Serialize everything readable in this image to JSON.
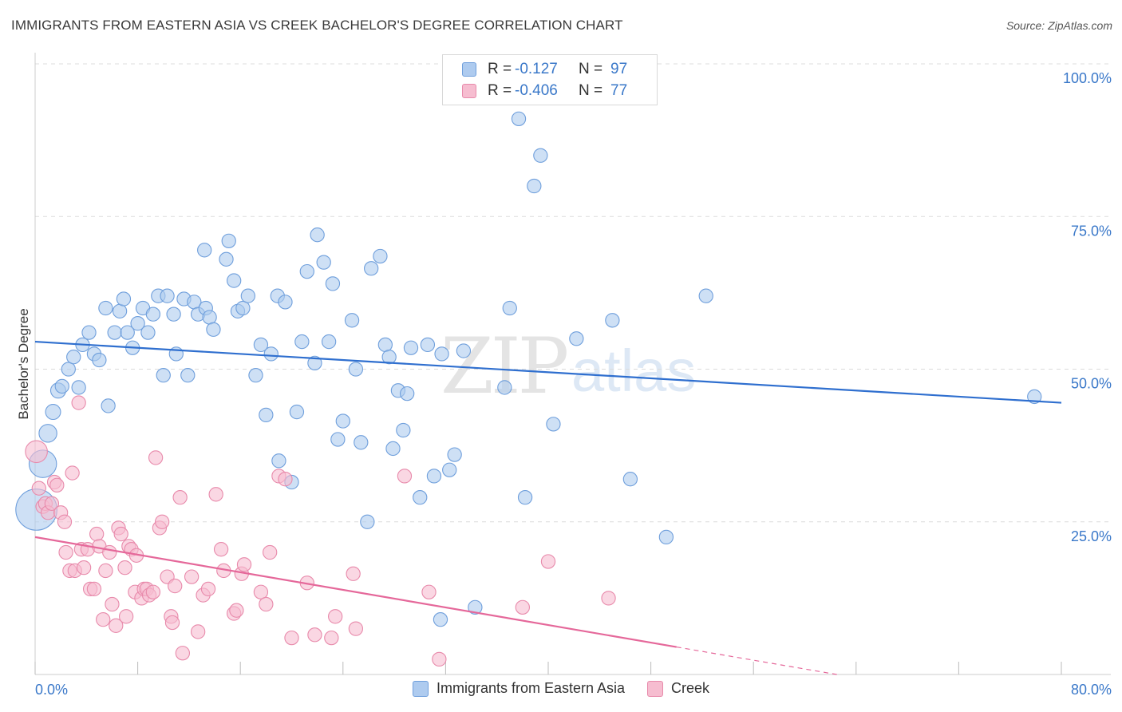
{
  "title": "IMMIGRANTS FROM EASTERN ASIA VS CREEK BACHELOR'S DEGREE CORRELATION CHART",
  "source": "Source: ZipAtlas.com",
  "watermark": {
    "zip": "ZIP",
    "atlas": "atlas"
  },
  "legend": {
    "r_label": "R =",
    "n_label": "N =",
    "rows": [
      {
        "r": "-0.127",
        "n": "97"
      },
      {
        "r": "-0.406",
        "n": "77"
      }
    ]
  },
  "colors": {
    "blue_fill": "#aecbef",
    "blue_stroke": "#6f9fdc",
    "blue_line": "#2f6fcf",
    "pink_fill": "#f6bdd0",
    "pink_stroke": "#e88aab",
    "pink_line": "#e5689a",
    "tick_label": "#3a78c9",
    "grid": "#dcdcdc"
  },
  "chart_data": {
    "type": "scatter",
    "xlabel": "",
    "ylabel": "Bachelor's Degree",
    "x_tick_labels": [
      "0.0%",
      "80.0%"
    ],
    "y_tick_labels": [
      "100.0%",
      "75.0%",
      "50.0%",
      "25.0%"
    ],
    "xlim": [
      0,
      80
    ],
    "ylim": [
      0,
      100
    ],
    "y_ticks": [
      100,
      75,
      50,
      25
    ],
    "grid": "horizontal dashed",
    "series": [
      {
        "name": "Immigrants from Eastern Asia",
        "color": "#aecbef",
        "trend": {
          "x0": 0,
          "y0": 54.5,
          "x1": 80,
          "y1": 44.5
        },
        "points": [
          [
            0.1,
            27.0,
            3
          ],
          [
            0.6,
            34.5,
            2
          ],
          [
            1.0,
            39.5,
            1.3
          ],
          [
            1.4,
            43.0,
            1.1
          ],
          [
            1.8,
            46.5,
            1.1
          ],
          [
            2.1,
            47.2,
            1
          ],
          [
            2.6,
            50.0,
            1
          ],
          [
            3.0,
            52.0,
            1
          ],
          [
            3.4,
            47.0,
            1
          ],
          [
            3.7,
            54.0,
            1
          ],
          [
            4.2,
            56.0,
            1
          ],
          [
            4.6,
            52.5,
            1
          ],
          [
            5.0,
            51.5,
            1
          ],
          [
            5.5,
            60.0,
            1
          ],
          [
            5.7,
            44.0,
            1
          ],
          [
            6.2,
            56.0,
            1
          ],
          [
            6.6,
            59.5,
            1
          ],
          [
            6.9,
            61.5,
            1
          ],
          [
            7.2,
            56.0,
            1
          ],
          [
            7.6,
            53.5,
            1
          ],
          [
            8.0,
            57.5,
            1
          ],
          [
            8.4,
            60.0,
            1
          ],
          [
            8.8,
            56.0,
            1
          ],
          [
            9.2,
            59.0,
            1
          ],
          [
            9.6,
            62.0,
            1
          ],
          [
            10.0,
            49.0,
            1
          ],
          [
            10.3,
            62.0,
            1
          ],
          [
            10.8,
            59.0,
            1
          ],
          [
            11.0,
            52.5,
            1
          ],
          [
            11.6,
            61.5,
            1
          ],
          [
            11.9,
            49.0,
            1
          ],
          [
            12.4,
            61.0,
            1
          ],
          [
            12.7,
            59.0,
            1
          ],
          [
            13.3,
            60.0,
            1
          ],
          [
            13.6,
            58.5,
            1
          ],
          [
            13.9,
            56.5,
            1
          ],
          [
            13.2,
            69.5,
            1
          ],
          [
            14.9,
            68.0,
            1
          ],
          [
            15.1,
            71.0,
            1
          ],
          [
            15.5,
            64.5,
            1
          ],
          [
            15.8,
            59.5,
            1
          ],
          [
            16.2,
            60.0,
            1
          ],
          [
            16.6,
            62.0,
            1
          ],
          [
            17.2,
            49.0,
            1
          ],
          [
            17.6,
            54.0,
            1
          ],
          [
            18.0,
            42.5,
            1
          ],
          [
            18.4,
            52.5,
            1
          ],
          [
            18.9,
            62.0,
            1
          ],
          [
            19.0,
            35.0,
            1
          ],
          [
            19.5,
            61.0,
            1
          ],
          [
            20.0,
            31.5,
            1
          ],
          [
            20.4,
            43.0,
            1
          ],
          [
            20.8,
            54.5,
            1
          ],
          [
            21.2,
            66.0,
            1
          ],
          [
            21.8,
            51.0,
            1
          ],
          [
            22.0,
            72.0,
            1
          ],
          [
            22.5,
            67.5,
            1
          ],
          [
            22.9,
            54.5,
            1
          ],
          [
            23.2,
            64.0,
            1
          ],
          [
            23.6,
            38.5,
            1
          ],
          [
            24.0,
            41.5,
            1
          ],
          [
            24.7,
            58.0,
            1
          ],
          [
            25.0,
            50.0,
            1
          ],
          [
            25.4,
            38.0,
            1
          ],
          [
            25.9,
            25.0,
            1
          ],
          [
            26.2,
            66.5,
            1
          ],
          [
            26.9,
            68.5,
            1
          ],
          [
            27.3,
            54.0,
            1
          ],
          [
            27.6,
            52.0,
            1
          ],
          [
            27.9,
            37.0,
            1
          ],
          [
            28.3,
            46.5,
            1
          ],
          [
            28.7,
            40.0,
            1
          ],
          [
            29.0,
            46.0,
            1
          ],
          [
            29.3,
            53.5,
            1
          ],
          [
            30.0,
            29.0,
            1
          ],
          [
            30.6,
            54.0,
            1
          ],
          [
            31.1,
            32.5,
            1
          ],
          [
            31.7,
            52.5,
            1
          ],
          [
            32.3,
            33.5,
            1
          ],
          [
            32.7,
            36.0,
            1
          ],
          [
            33.4,
            53.0,
            1
          ],
          [
            31.6,
            9.0,
            1
          ],
          [
            34.3,
            11.0,
            1
          ],
          [
            36.6,
            47.0,
            1
          ],
          [
            37.0,
            60.0,
            1
          ],
          [
            37.7,
            91.0,
            1
          ],
          [
            38.2,
            29.0,
            1
          ],
          [
            38.9,
            80.0,
            1
          ],
          [
            39.4,
            85.0,
            1
          ],
          [
            40.4,
            41.0,
            1
          ],
          [
            42.2,
            55.0,
            1
          ],
          [
            45.0,
            58.0,
            1
          ],
          [
            46.4,
            32.0,
            1
          ],
          [
            49.2,
            22.5,
            1
          ],
          [
            52.3,
            62.0,
            1
          ],
          [
            77.9,
            45.5,
            1
          ]
        ]
      },
      {
        "name": "Creek",
        "color": "#f6bdd0",
        "trend": {
          "x0": 0,
          "y0": 22.5,
          "x1": 50,
          "y1": 4.5
        },
        "trend_dashed_to": {
          "x": 62.5,
          "y": 0
        },
        "points": [
          [
            0.1,
            36.5,
            1.6
          ],
          [
            0.3,
            30.5,
            1
          ],
          [
            0.6,
            27.5,
            1
          ],
          [
            0.8,
            28.0,
            1
          ],
          [
            1.0,
            26.5,
            1
          ],
          [
            1.3,
            28.0,
            1
          ],
          [
            1.5,
            31.5,
            1
          ],
          [
            1.7,
            31.0,
            1
          ],
          [
            2.0,
            26.5,
            1
          ],
          [
            2.3,
            25.0,
            1
          ],
          [
            2.4,
            20.0,
            1
          ],
          [
            2.7,
            17.0,
            1
          ],
          [
            2.9,
            33.0,
            1
          ],
          [
            3.1,
            17.0,
            1
          ],
          [
            3.4,
            44.5,
            1
          ],
          [
            3.6,
            20.5,
            1
          ],
          [
            3.8,
            17.5,
            1
          ],
          [
            4.1,
            20.5,
            1
          ],
          [
            4.3,
            14.0,
            1
          ],
          [
            4.6,
            14.0,
            1
          ],
          [
            4.8,
            23.0,
            1
          ],
          [
            5.0,
            21.0,
            1
          ],
          [
            5.3,
            9.0,
            1
          ],
          [
            5.5,
            17.0,
            1
          ],
          [
            5.8,
            20.0,
            1
          ],
          [
            6.0,
            11.5,
            1
          ],
          [
            6.3,
            8.0,
            1
          ],
          [
            6.5,
            24.0,
            1
          ],
          [
            6.7,
            23.0,
            1
          ],
          [
            7.0,
            17.5,
            1
          ],
          [
            7.1,
            9.5,
            1
          ],
          [
            7.3,
            21.0,
            1
          ],
          [
            7.5,
            20.5,
            1
          ],
          [
            7.8,
            13.5,
            1
          ],
          [
            7.9,
            19.5,
            1
          ],
          [
            8.3,
            12.5,
            1
          ],
          [
            8.5,
            14.0,
            1
          ],
          [
            8.7,
            14.0,
            1
          ],
          [
            8.9,
            13.0,
            1
          ],
          [
            9.2,
            13.5,
            1
          ],
          [
            9.4,
            35.5,
            1
          ],
          [
            9.7,
            24.0,
            1
          ],
          [
            9.9,
            25.0,
            1
          ],
          [
            10.3,
            16.0,
            1
          ],
          [
            10.6,
            9.5,
            1
          ],
          [
            10.7,
            8.5,
            1
          ],
          [
            10.9,
            14.5,
            1
          ],
          [
            11.3,
            29.0,
            1
          ],
          [
            11.5,
            3.5,
            1
          ],
          [
            12.2,
            16.0,
            1
          ],
          [
            12.7,
            7.0,
            1
          ],
          [
            13.1,
            13.0,
            1
          ],
          [
            13.5,
            14.0,
            1
          ],
          [
            14.1,
            29.5,
            1
          ],
          [
            14.5,
            20.5,
            1
          ],
          [
            14.7,
            17.0,
            1
          ],
          [
            15.5,
            10.0,
            1
          ],
          [
            15.7,
            10.5,
            1
          ],
          [
            16.1,
            16.5,
            1
          ],
          [
            16.3,
            18.0,
            1
          ],
          [
            17.6,
            13.5,
            1
          ],
          [
            18.0,
            11.5,
            1
          ],
          [
            18.3,
            20.0,
            1
          ],
          [
            19.0,
            32.5,
            1
          ],
          [
            19.5,
            32.0,
            1
          ],
          [
            20.0,
            6.0,
            1
          ],
          [
            21.2,
            15.0,
            1
          ],
          [
            21.8,
            6.5,
            1
          ],
          [
            23.1,
            6.0,
            1
          ],
          [
            23.4,
            9.5,
            1
          ],
          [
            24.8,
            16.5,
            1
          ],
          [
            25.0,
            7.5,
            1
          ],
          [
            28.8,
            32.5,
            1
          ],
          [
            30.7,
            13.5,
            1
          ],
          [
            31.5,
            2.5,
            1
          ],
          [
            38.0,
            11.0,
            1
          ],
          [
            40.0,
            18.5,
            1
          ],
          [
            44.7,
            12.5,
            1
          ]
        ]
      }
    ]
  }
}
